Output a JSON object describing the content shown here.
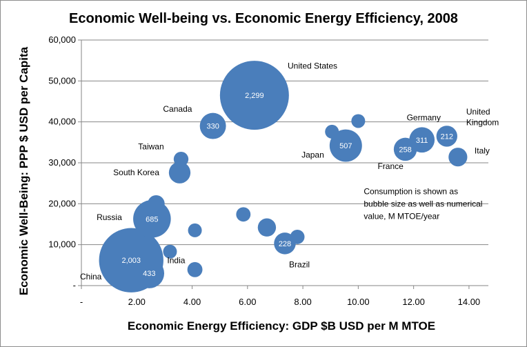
{
  "chart_data": {
    "type": "bubble",
    "title": "Economic Well-being vs. Economic Energy Efficiency, 2008",
    "xlabel": "Economic Energy Efficiency: GDP $B USD per M MTOE",
    "ylabel": "Economic Well-Being: PPP $ USD per Capita",
    "xlim": [
      0,
      14.7
    ],
    "ylim": [
      0,
      60000
    ],
    "x_ticks": [
      0,
      2,
      4,
      6,
      8,
      10,
      12,
      14
    ],
    "x_tick_labels": [
      "-",
      "2.00",
      "4.00",
      "6.00",
      "8.00",
      "10.00",
      "12.00",
      "14.00"
    ],
    "y_ticks": [
      0,
      10000,
      20000,
      30000,
      40000,
      50000,
      60000
    ],
    "y_tick_labels": [
      "-",
      "10,000",
      "20,000",
      "30,000",
      "40,000",
      "50,000",
      "60,000"
    ],
    "grid": "horizontal",
    "bubble_color": "#4a7ebb",
    "note": "Consumption is shown as bubble size as well as numerical value, M MTOE/year",
    "note_lines": [
      "Consumption is shown as",
      "bubble size as well as numerical",
      "value, M MTOE/year"
    ],
    "points": [
      {
        "x": 6.25,
        "y": 46500,
        "size": 2299,
        "value_label": "2,299",
        "country": "United States"
      },
      {
        "x": 4.75,
        "y": 39000,
        "size": 330,
        "value_label": "330",
        "country": "Canada"
      },
      {
        "x": 9.55,
        "y": 34200,
        "size": 507,
        "value_label": "507",
        "country": "Japan"
      },
      {
        "x": 9.05,
        "y": 37600,
        "size": 90
      },
      {
        "x": 10.0,
        "y": 40200,
        "size": 70
      },
      {
        "x": 11.7,
        "y": 33300,
        "size": 258,
        "value_label": "258",
        "country": "France"
      },
      {
        "x": 12.3,
        "y": 35600,
        "size": 311,
        "value_label": "311",
        "country": "Germany"
      },
      {
        "x": 13.2,
        "y": 36500,
        "size": 212,
        "value_label": "212",
        "country": "United Kingdom"
      },
      {
        "x": 13.6,
        "y": 31400,
        "size": 170,
        "country": "Italy"
      },
      {
        "x": 3.6,
        "y": 30900,
        "size": 105,
        "country": "Taiwan"
      },
      {
        "x": 3.55,
        "y": 27600,
        "size": 225,
        "country": "South Korea"
      },
      {
        "x": 2.7,
        "y": 20000,
        "size": 140
      },
      {
        "x": 2.55,
        "y": 16300,
        "size": 685,
        "value_label": "685",
        "country": "Russia"
      },
      {
        "x": 4.1,
        "y": 13500,
        "size": 70
      },
      {
        "x": 5.85,
        "y": 17400,
        "size": 100
      },
      {
        "x": 6.7,
        "y": 14200,
        "size": 160
      },
      {
        "x": 7.8,
        "y": 11900,
        "size": 100
      },
      {
        "x": 7.35,
        "y": 10300,
        "size": 228,
        "value_label": "228",
        "country": "Brazil"
      },
      {
        "x": 3.2,
        "y": 8300,
        "size": 70
      },
      {
        "x": 1.8,
        "y": 6200,
        "size": 2003,
        "value_label": "2,003",
        "country": "China"
      },
      {
        "x": 2.45,
        "y": 3000,
        "size": 433,
        "value_label": "433",
        "country": "India"
      },
      {
        "x": 4.1,
        "y": 3900,
        "size": 110
      }
    ],
    "labels": [
      {
        "text": "United States",
        "x": 7.45,
        "y": 53000
      },
      {
        "text": "Canada",
        "x": 2.95,
        "y": 42500
      },
      {
        "text": "Taiwan",
        "x": 2.05,
        "y": 33300
      },
      {
        "text": "South Korea",
        "x": 1.15,
        "y": 27000
      },
      {
        "text": "Russia",
        "x": 0.55,
        "y": 16000
      },
      {
        "text": "India",
        "x": 3.1,
        "y": 5500
      },
      {
        "text": "China",
        "x": -0.05,
        "y": 1500
      },
      {
        "text": "Brazil",
        "x": 7.5,
        "y": 4500
      },
      {
        "text": "Japan",
        "x": 7.95,
        "y": 31300
      },
      {
        "text": "France",
        "x": 10.7,
        "y": 28500
      },
      {
        "text": "Germany",
        "x": 11.75,
        "y": 40400
      },
      {
        "text": "United",
        "x": 13.9,
        "y": 41800
      },
      {
        "text": "Kingdom",
        "x": 13.9,
        "y": 39200
      },
      {
        "text": "Italy",
        "x": 14.2,
        "y": 32300
      }
    ]
  }
}
